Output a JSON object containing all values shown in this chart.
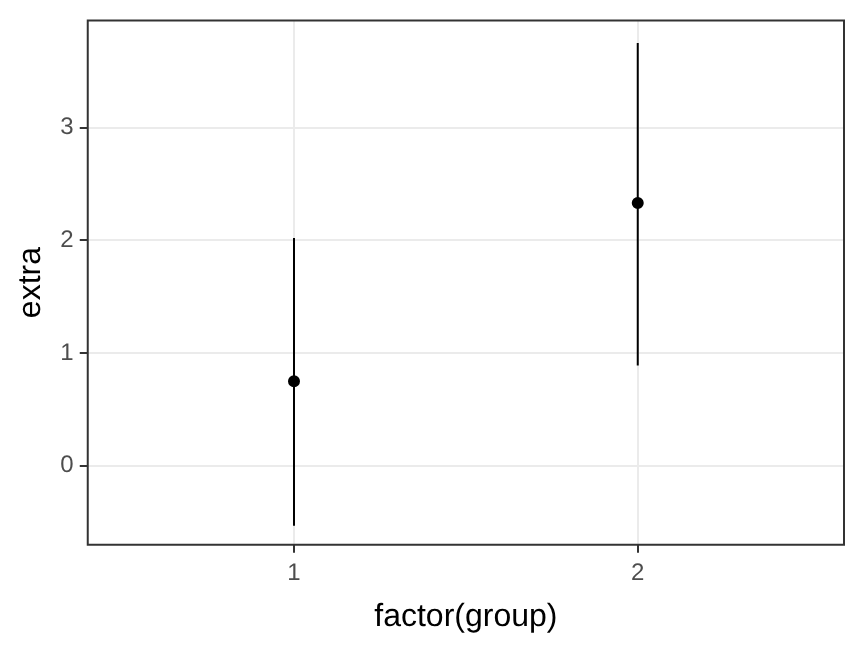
{
  "chart_data": {
    "type": "scatter",
    "xlabel": "factor(group)",
    "ylabel": "extra",
    "categories": [
      "1",
      "2"
    ],
    "series": [
      {
        "color": "#000000",
        "values": [
          0.75,
          2.33
        ],
        "errors": [
          [
            -0.53,
            2.02
          ],
          [
            0.89,
            3.75
          ]
        ]
      }
    ],
    "ylim": [
      -0.7,
      3.95
    ],
    "yticks": [
      0,
      1,
      2,
      3
    ],
    "grid": true,
    "marker": "circle",
    "legend": false
  }
}
